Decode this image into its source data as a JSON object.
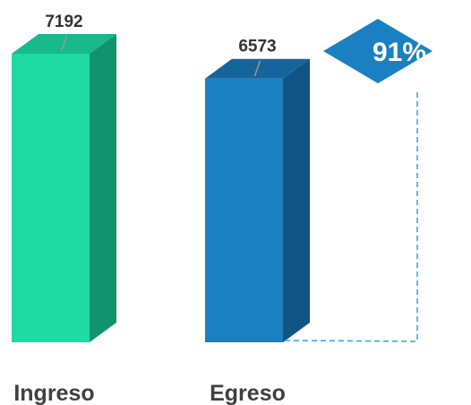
{
  "chart_data": {
    "type": "bar",
    "categories": [
      "Ingreso",
      "Egreso"
    ],
    "values": [
      7192,
      6573
    ],
    "ratio_label": "91%",
    "colors": {
      "Ingreso": {
        "front": "#1ddba3",
        "top": "#18b98a",
        "side": "#11946d"
      },
      "Egreso": {
        "front": "#1b80c2",
        "top": "#15649c",
        "side": "#0f5482"
      },
      "badge": "#1b80c2",
      "connector": "#3a9fd6"
    }
  }
}
